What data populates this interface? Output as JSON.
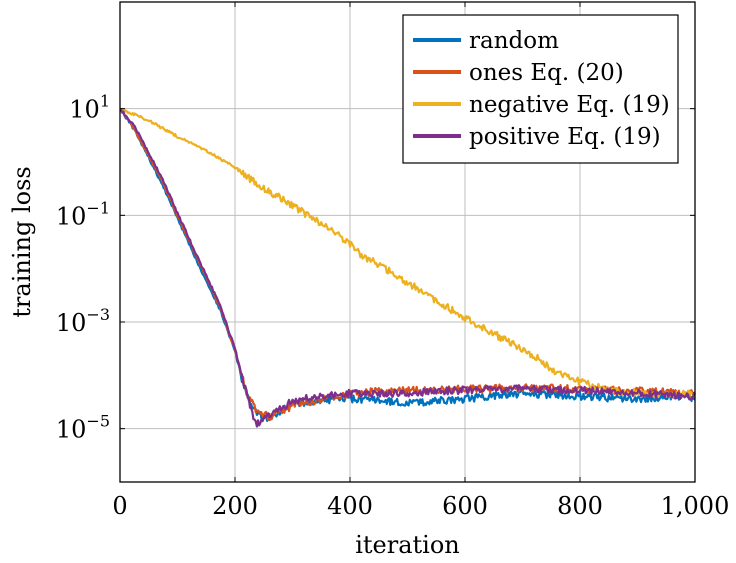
{
  "chart_data": {
    "type": "line",
    "xlabel": "iteration",
    "ylabel": "training loss",
    "xlim": [
      0,
      1000
    ],
    "ylim": [
      1e-06,
      1000
    ],
    "yscale": "log",
    "grid": true,
    "legend_position": "top-right",
    "x_ticks": [
      "0",
      "200",
      "400",
      "600",
      "800",
      "1,000"
    ],
    "y_ticks": [
      {
        "base": "10",
        "exp": "1"
      },
      {
        "base": "10",
        "exp": "−1"
      },
      {
        "base": "10",
        "exp": "−3"
      },
      {
        "base": "10",
        "exp": "−5"
      }
    ],
    "series": [
      {
        "name": "random",
        "color": "#0072BD",
        "points": [
          [
            0,
            10
          ],
          [
            25,
            4
          ],
          [
            50,
            1.2
          ],
          [
            75,
            0.35
          ],
          [
            100,
            0.09
          ],
          [
            125,
            0.022
          ],
          [
            150,
            0.006
          ],
          [
            175,
            0.0016
          ],
          [
            200,
            0.00028
          ],
          [
            220,
            4e-05
          ],
          [
            240,
            1.8e-05
          ],
          [
            260,
            1.6e-05
          ],
          [
            280,
            2.2e-05
          ],
          [
            300,
            2.8e-05
          ],
          [
            350,
            3.4e-05
          ],
          [
            400,
            3.6e-05
          ],
          [
            450,
            3.4e-05
          ],
          [
            500,
            3e-05
          ],
          [
            550,
            3.3e-05
          ],
          [
            600,
            3.6e-05
          ],
          [
            650,
            4.2e-05
          ],
          [
            700,
            4.5e-05
          ],
          [
            750,
            4.3e-05
          ],
          [
            800,
            4.1e-05
          ],
          [
            850,
            3.8e-05
          ],
          [
            900,
            3.6e-05
          ],
          [
            950,
            4e-05
          ],
          [
            1000,
            3.8e-05
          ]
        ]
      },
      {
        "name": "ones Eq. (20)",
        "color": "#D95319",
        "points": [
          [
            0,
            10
          ],
          [
            25,
            4.2
          ],
          [
            50,
            1.3
          ],
          [
            75,
            0.4
          ],
          [
            100,
            0.1
          ],
          [
            125,
            0.026
          ],
          [
            150,
            0.007
          ],
          [
            175,
            0.0018
          ],
          [
            200,
            0.0003
          ],
          [
            220,
            4.5e-05
          ],
          [
            240,
            2e-05
          ],
          [
            260,
            1.7e-05
          ],
          [
            280,
            2.1e-05
          ],
          [
            300,
            2.7e-05
          ],
          [
            350,
            3.6e-05
          ],
          [
            400,
            4.5e-05
          ],
          [
            450,
            5e-05
          ],
          [
            500,
            5.2e-05
          ],
          [
            550,
            5.4e-05
          ],
          [
            600,
            5.5e-05
          ],
          [
            650,
            5.7e-05
          ],
          [
            700,
            5.8e-05
          ],
          [
            750,
            5.7e-05
          ],
          [
            800,
            5.5e-05
          ],
          [
            850,
            5.3e-05
          ],
          [
            900,
            5.1e-05
          ],
          [
            950,
            4.8e-05
          ],
          [
            1000,
            4.5e-05
          ]
        ]
      },
      {
        "name": "negative Eq. (19)",
        "color": "#EDB120",
        "points": [
          [
            0,
            10
          ],
          [
            50,
            6
          ],
          [
            100,
            3
          ],
          [
            150,
            1.6
          ],
          [
            200,
            0.8
          ],
          [
            230,
            0.45
          ],
          [
            260,
            0.28
          ],
          [
            300,
            0.15
          ],
          [
            350,
            0.07
          ],
          [
            400,
            0.03
          ],
          [
            420,
            0.017
          ],
          [
            450,
            0.012
          ],
          [
            500,
            0.0055
          ],
          [
            550,
            0.0025
          ],
          [
            600,
            0.0012
          ],
          [
            650,
            0.0006
          ],
          [
            700,
            0.00032
          ],
          [
            730,
            0.0002
          ],
          [
            760,
            0.00011
          ],
          [
            800,
            7.5e-05
          ],
          [
            830,
            6e-05
          ],
          [
            860,
            5.2e-05
          ],
          [
            900,
            4.7e-05
          ],
          [
            950,
            4.5e-05
          ],
          [
            1000,
            4.4e-05
          ]
        ]
      },
      {
        "name": "positive Eq. (19)",
        "color": "#7E2F8E",
        "points": [
          [
            0,
            10
          ],
          [
            25,
            4.6
          ],
          [
            50,
            1.5
          ],
          [
            75,
            0.45
          ],
          [
            100,
            0.11
          ],
          [
            125,
            0.028
          ],
          [
            150,
            0.0075
          ],
          [
            175,
            0.0019
          ],
          [
            200,
            0.00031
          ],
          [
            220,
            4.6e-05
          ],
          [
            235,
            1.2e-05
          ],
          [
            250,
            1.5e-05
          ],
          [
            270,
            2.2e-05
          ],
          [
            300,
            3.2e-05
          ],
          [
            350,
            4.2e-05
          ],
          [
            400,
            4.6e-05
          ],
          [
            450,
            4.5e-05
          ],
          [
            500,
            4.6e-05
          ],
          [
            550,
            5e-05
          ],
          [
            600,
            5.3e-05
          ],
          [
            650,
            5.6e-05
          ],
          [
            700,
            5.8e-05
          ],
          [
            750,
            5.5e-05
          ],
          [
            800,
            5.2e-05
          ],
          [
            850,
            5e-05
          ],
          [
            900,
            4.6e-05
          ],
          [
            950,
            4.3e-05
          ],
          [
            1000,
            4.1e-05
          ]
        ]
      }
    ]
  }
}
